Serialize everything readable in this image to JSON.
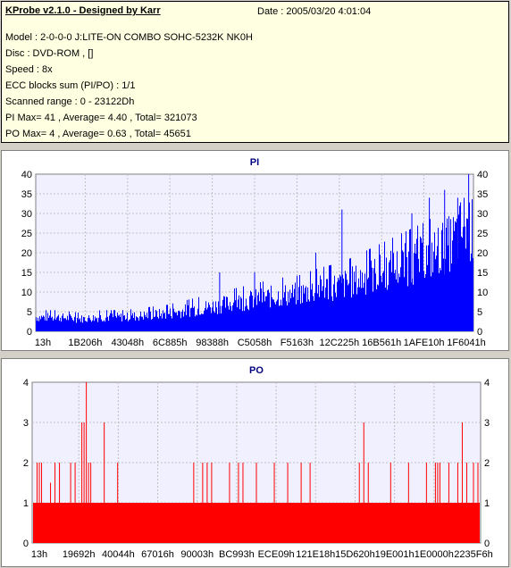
{
  "info": {
    "title": "KProbe v2.1.0 - Designed by Karr",
    "date": "Date : 2005/03/20 4:01:04",
    "lines": [
      "Model : 2-0-0-0 J:LITE-ON COMBO SOHC-5232K NK0H",
      "Disc : DVD-ROM ,  []",
      "Speed : 8x",
      "ECC blocks sum (PI/PO) : 1/1",
      "Scanned range : 0 - 23122Dh",
      "PI Max= 41 , Average= 4.40 , Total= 321073",
      "PO Max= 4 , Average= 0.63 , Total= 45651"
    ]
  },
  "colors": {
    "pi": "#0000ff",
    "po": "#ff0000",
    "plot_bg": "#f0f0ff",
    "grid": "#c0c0c0"
  },
  "chart_data": [
    {
      "type": "bar",
      "title": "PI",
      "ylim": [
        0,
        40
      ],
      "yticks": [
        0,
        5,
        10,
        15,
        20,
        25,
        30,
        35,
        40
      ],
      "xticks": [
        "13h",
        "1B206h",
        "43048h",
        "6C885h",
        "98388h",
        "C5058h",
        "F5163h",
        "12C225h",
        "16B561h",
        "1AFE10h",
        "1F6041h"
      ],
      "grid": true,
      "x": [
        0,
        0.05,
        0.1,
        0.15,
        0.2,
        0.25,
        0.3,
        0.35,
        0.4,
        0.45,
        0.5,
        0.55,
        0.6,
        0.65,
        0.7,
        0.75,
        0.8,
        0.85,
        0.9,
        0.92,
        0.95,
        0.97,
        0.98,
        0.99,
        1.0
      ],
      "values": [
        4,
        4,
        3.5,
        4,
        4,
        4.5,
        5,
        6,
        7,
        8,
        9,
        10,
        10.5,
        12,
        13,
        15,
        17,
        19,
        21,
        23,
        25,
        28,
        30,
        30,
        28
      ],
      "peaks": [
        {
          "x": 0.42,
          "v": 15
        },
        {
          "x": 0.5,
          "v": 15
        },
        {
          "x": 0.64,
          "v": 20
        },
        {
          "x": 0.7,
          "v": 31
        },
        {
          "x": 0.86,
          "v": 30
        },
        {
          "x": 0.9,
          "v": 34
        },
        {
          "x": 0.935,
          "v": 36
        },
        {
          "x": 0.965,
          "v": 34
        },
        {
          "x": 0.99,
          "v": 41
        }
      ]
    },
    {
      "type": "bar",
      "title": "PO",
      "ylim": [
        0,
        4
      ],
      "yticks": [
        0,
        1,
        2,
        3,
        4
      ],
      "xticks": [
        "13h",
        "19692h",
        "40044h",
        "67016h",
        "90003h",
        "BC993h",
        "ECE09h",
        "121E18h",
        "15D620h",
        "19E001h",
        "1E0000h",
        "2235F6h"
      ],
      "grid": true,
      "base": 1,
      "spikes": [
        {
          "x": 0.01,
          "v": 2
        },
        {
          "x": 0.015,
          "v": 2
        },
        {
          "x": 0.02,
          "v": 2
        },
        {
          "x": 0.04,
          "v": 1.5
        },
        {
          "x": 0.05,
          "v": 2
        },
        {
          "x": 0.06,
          "v": 2
        },
        {
          "x": 0.085,
          "v": 2
        },
        {
          "x": 0.095,
          "v": 2
        },
        {
          "x": 0.11,
          "v": 3
        },
        {
          "x": 0.115,
          "v": 3
        },
        {
          "x": 0.12,
          "v": 4
        },
        {
          "x": 0.125,
          "v": 2
        },
        {
          "x": 0.13,
          "v": 2
        },
        {
          "x": 0.16,
          "v": 3
        },
        {
          "x": 0.19,
          "v": 2
        },
        {
          "x": 0.36,
          "v": 2
        },
        {
          "x": 0.38,
          "v": 2
        },
        {
          "x": 0.39,
          "v": 2
        },
        {
          "x": 0.4,
          "v": 2
        },
        {
          "x": 0.44,
          "v": 2
        },
        {
          "x": 0.46,
          "v": 2
        },
        {
          "x": 0.47,
          "v": 2
        },
        {
          "x": 0.5,
          "v": 2
        },
        {
          "x": 0.54,
          "v": 2
        },
        {
          "x": 0.57,
          "v": 2
        },
        {
          "x": 0.6,
          "v": 2
        },
        {
          "x": 0.62,
          "v": 2
        },
        {
          "x": 0.73,
          "v": 2
        },
        {
          "x": 0.74,
          "v": 3
        },
        {
          "x": 0.75,
          "v": 2
        },
        {
          "x": 0.8,
          "v": 2
        },
        {
          "x": 0.84,
          "v": 2
        },
        {
          "x": 0.88,
          "v": 2
        },
        {
          "x": 0.9,
          "v": 2
        },
        {
          "x": 0.905,
          "v": 2
        },
        {
          "x": 0.91,
          "v": 2
        },
        {
          "x": 0.93,
          "v": 2
        },
        {
          "x": 0.95,
          "v": 2
        },
        {
          "x": 0.96,
          "v": 3
        },
        {
          "x": 0.97,
          "v": 2
        },
        {
          "x": 0.985,
          "v": 2
        },
        {
          "x": 0.995,
          "v": 2
        }
      ]
    }
  ]
}
